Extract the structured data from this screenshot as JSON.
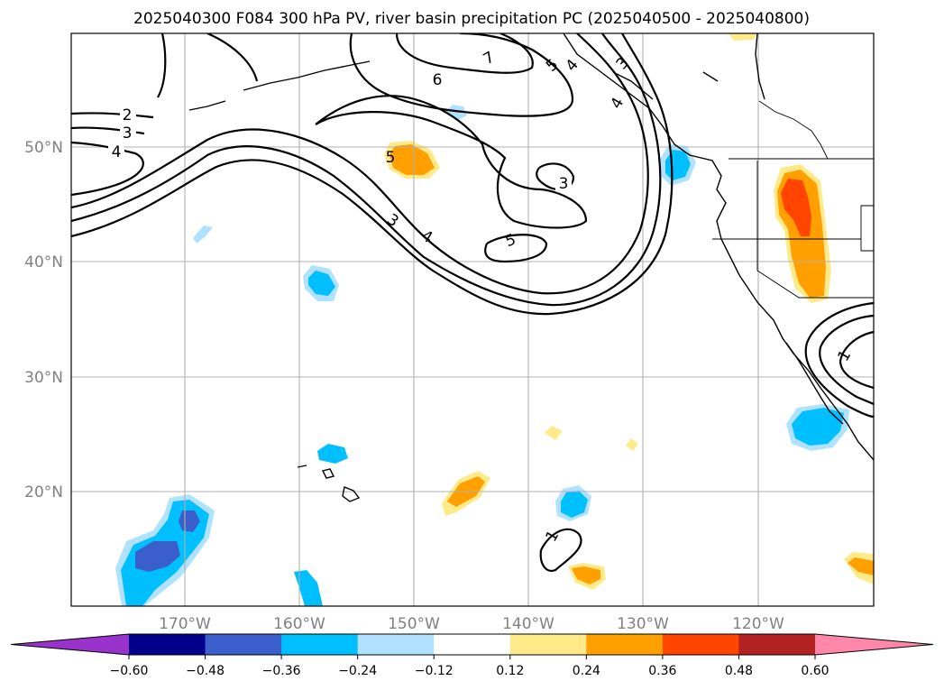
{
  "title": "2025040300 F084 300 hPa PV, river basin precipitation PC (2025040500 - 2025040800)",
  "latitude_labels": [
    "50°N",
    "40°N",
    "30°N",
    "20°N"
  ],
  "longitude_labels": [
    "170°W",
    "160°W",
    "150°W",
    "140°W",
    "130°W",
    "120°W"
  ],
  "contour_labels": [
    "2",
    "3",
    "4",
    "6",
    "7",
    "5",
    "4",
    "3",
    "4",
    "5",
    "3",
    "4",
    "5",
    "1",
    "3",
    "1"
  ],
  "colorbar": {
    "ticks": [
      "−0.60",
      "−0.48",
      "−0.36",
      "−0.24",
      "−0.12",
      "0.12",
      "0.24",
      "0.36",
      "0.48",
      "0.60"
    ],
    "colors": [
      "#9933cc",
      "#00008b",
      "#3a5fcd",
      "#00bfff",
      "#b0e2ff",
      "#ffffff",
      "#ffea8a",
      "#ffa000",
      "#ff4500",
      "#b22222",
      "#ff88aa"
    ]
  },
  "fill_colors": {
    "light_blue": "#b0e2ff",
    "blue": "#00bfff",
    "royal_blue": "#3a5fcd",
    "light_yellow": "#ffea8a",
    "orange": "#ffa000",
    "red_orange": "#ff4500"
  }
}
